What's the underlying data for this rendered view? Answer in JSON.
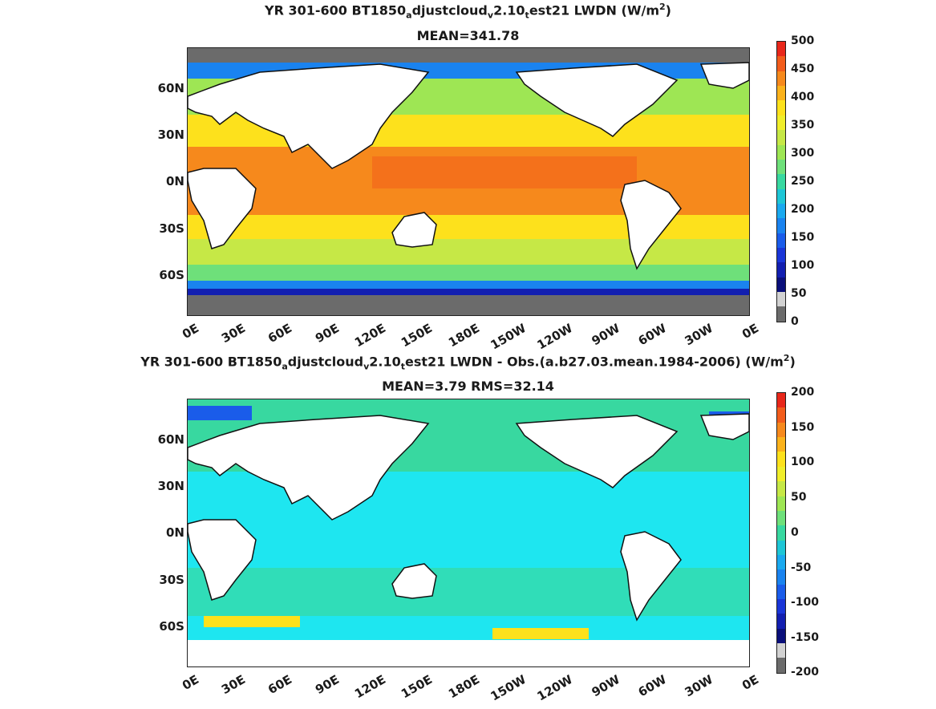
{
  "panels": [
    {
      "title_prefix": "YR 301-600 BT1850",
      "title_sub1": "a",
      "title_mid1": "djustcloud",
      "title_sub2": "v",
      "title_mid2": "2.10",
      "title_sub3": "t",
      "title_suffix": "est21 LWDN (W/m",
      "title_sup": "2",
      "title_close": ")",
      "subtitle": "MEAN=341.78",
      "lat_labels": [
        "60N",
        "30N",
        "0N",
        "30S",
        "60S"
      ],
      "lon_labels": [
        "0E",
        "30E",
        "60E",
        "90E",
        "120E",
        "150E",
        "180E",
        "150W",
        "120W",
        "90W",
        "60W",
        "30W",
        "0E"
      ],
      "colorbar_labels": [
        "500",
        "450",
        "400",
        "350",
        "300",
        "250",
        "200",
        "150",
        "100",
        "50",
        "0"
      ]
    },
    {
      "title_prefix": "YR 301-600 BT1850",
      "title_sub1": "a",
      "title_mid1": "djustcloud",
      "title_sub2": "v",
      "title_mid2": "2.10",
      "title_sub3": "t",
      "title_suffix": "est21 LWDN - Obs.(a.b27.03.mean.1984-2006) (W/m",
      "title_sup": "2",
      "title_close": ")",
      "subtitle": "MEAN=3.79 RMS=32.14",
      "lat_labels": [
        "60N",
        "30N",
        "0N",
        "30S",
        "60S"
      ],
      "lon_labels": [
        "0E",
        "30E",
        "60E",
        "90E",
        "120E",
        "150E",
        "180E",
        "150W",
        "120W",
        "90W",
        "60W",
        "30W",
        "0E"
      ],
      "colorbar_labels": [
        "200",
        "150",
        "100",
        "50",
        "0",
        "-50",
        "-100",
        "-150",
        "-200"
      ]
    }
  ],
  "colors": {
    "cb_top": [
      "#e8271a",
      "#f25c1b",
      "#f6891c",
      "#fbb21b",
      "#fde11c",
      "#f0ee2a",
      "#c6e846",
      "#9ee654",
      "#6ee07a",
      "#38d8a0",
      "#1ec6d6",
      "#1aa9ef",
      "#1a83ef",
      "#1a5cea",
      "#1a36d8",
      "#121fb0",
      "#0a0f7a",
      "#d2d2d2",
      "#6b6b6b"
    ],
    "cb_bottom": [
      "#e8271a",
      "#f25c1b",
      "#f6891c",
      "#fbb21b",
      "#fde11c",
      "#f0ee2a",
      "#c6e846",
      "#9ee654",
      "#6ee07a",
      "#38d8a0",
      "#1ec6d6",
      "#1aa9ef",
      "#1a83ef",
      "#1a5cea",
      "#1a36d8",
      "#121fb0",
      "#0a0f7a",
      "#d2d2d2",
      "#6b6b6b"
    ]
  }
}
